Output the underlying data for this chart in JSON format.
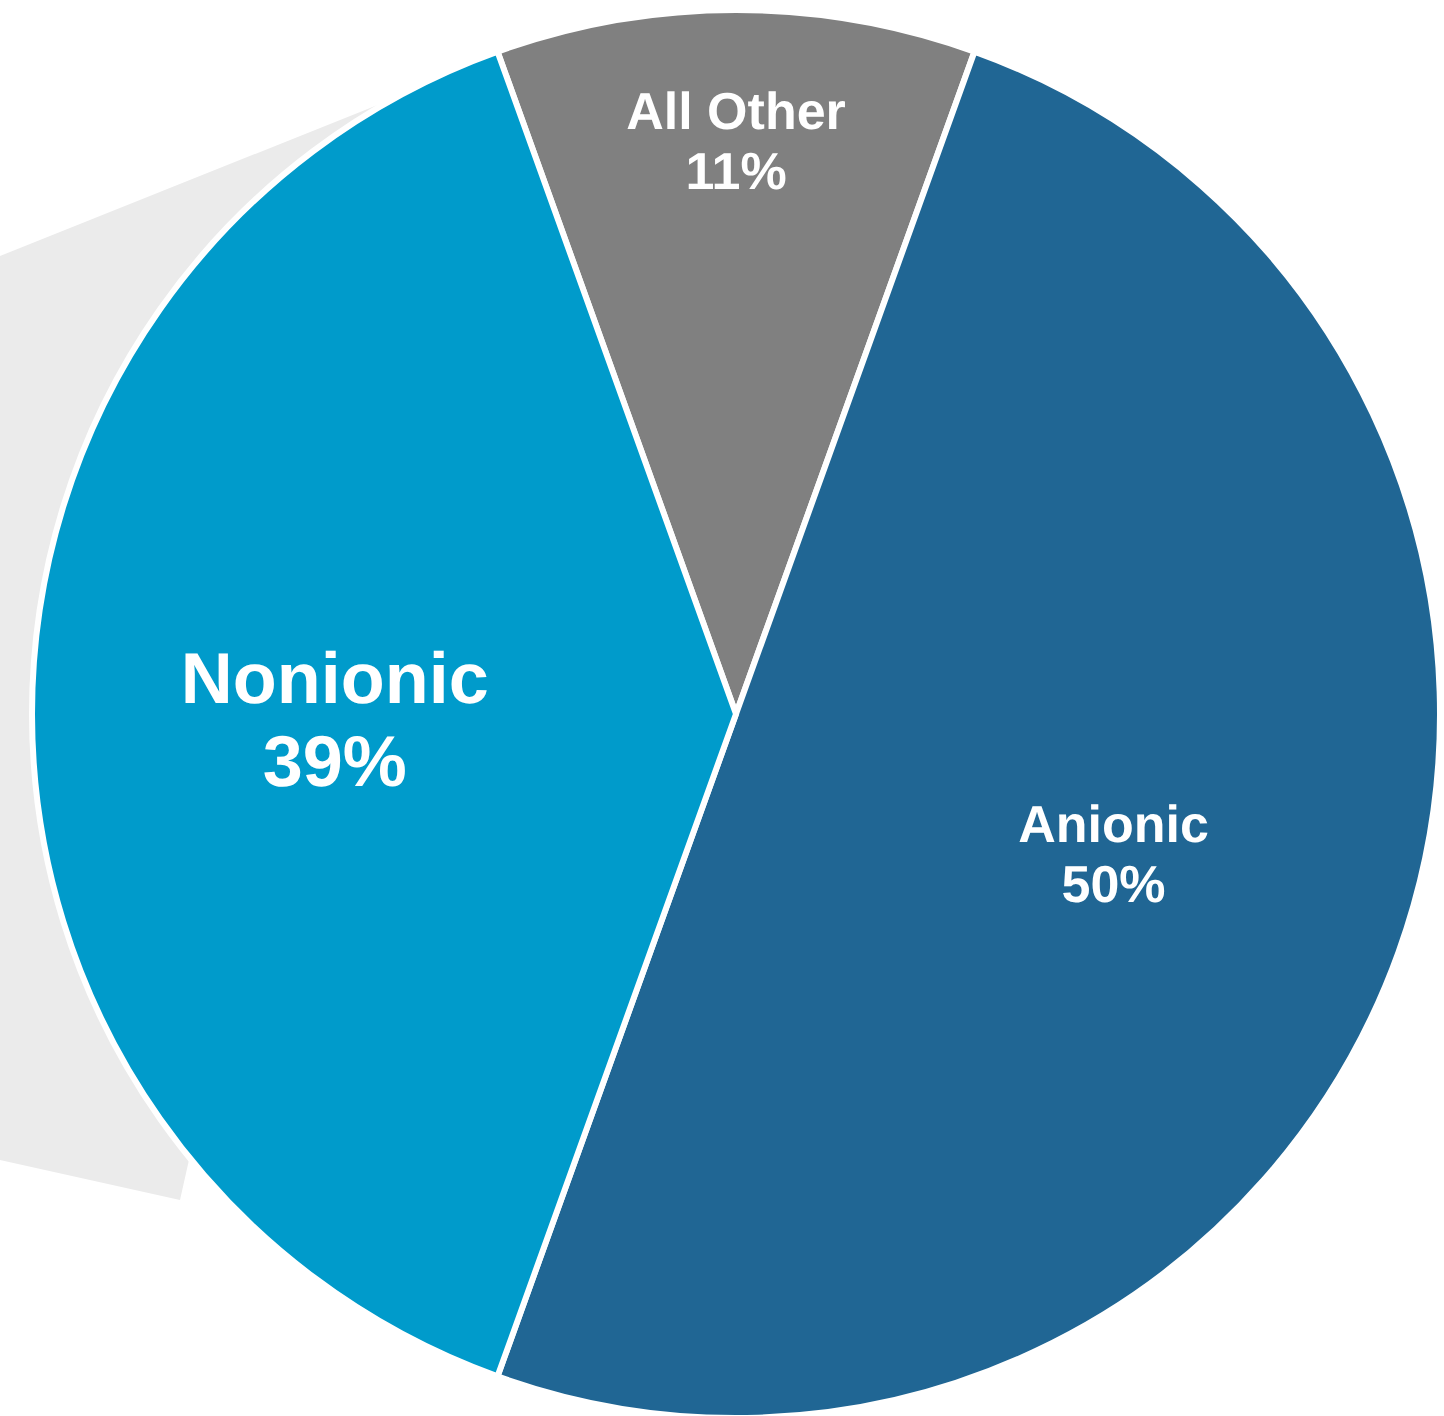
{
  "chart_data": {
    "type": "pie",
    "categories": [
      "All Other",
      "Anionic",
      "Nonionic"
    ],
    "values": [
      11,
      50,
      39
    ],
    "colors": [
      "#808080",
      "#206694",
      "#009bcb"
    ],
    "value_labels": [
      "11%",
      "50%",
      "39%"
    ]
  }
}
